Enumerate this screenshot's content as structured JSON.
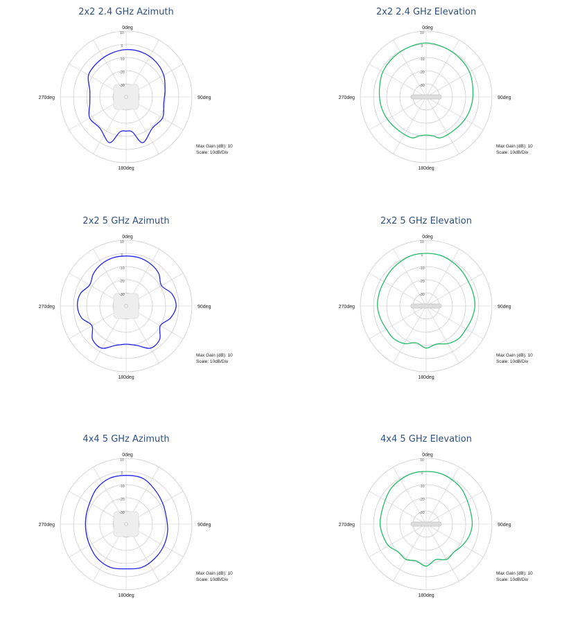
{
  "colors": {
    "azimuth": "#2222ee",
    "elevation": "#22bb66",
    "grid": "#cccccc",
    "title": "#2f4f7f"
  },
  "chart_data": [
    {
      "type": "polar-line",
      "title": "2x2 2.4 GHz Azimuth",
      "plane": "azimuth",
      "direction_labels": [
        "0deg",
        "90deg",
        "180deg",
        "270deg"
      ],
      "radial_ticks": [
        "10",
        "0",
        "-10",
        "-20",
        "-30"
      ],
      "rlim": [
        -40,
        10
      ],
      "max_gain": "Max Gain (dB): 10",
      "scale": "Scale: 10dB/Div",
      "angles": [
        0,
        20,
        40,
        60,
        80,
        100,
        120,
        140,
        160,
        170,
        180,
        190,
        200,
        220,
        240,
        260,
        280,
        300,
        320,
        340
      ],
      "gain_db": [
        -4,
        -4,
        -5,
        -7,
        -10,
        -11,
        -8,
        -9,
        -3,
        -13,
        -14,
        -13,
        -3,
        -9,
        -8,
        -12,
        -12,
        -7,
        -6,
        -5
      ]
    },
    {
      "type": "polar-line",
      "title": "2x2 2.4 GHz Elevation",
      "plane": "elevation",
      "direction_labels": [
        "0deg",
        "90deg",
        "180deg",
        "270deg"
      ],
      "radial_ticks": [
        "10",
        "0",
        "-10",
        "-20",
        "-30"
      ],
      "rlim": [
        -40,
        10
      ],
      "max_gain": "Max Gain (dB): 10",
      "scale": "Scale: 10dB/Div",
      "angles": [
        0,
        20,
        40,
        60,
        80,
        100,
        120,
        140,
        160,
        170,
        180,
        190,
        200,
        220,
        240,
        260,
        280,
        300,
        320,
        340
      ],
      "gain_db": [
        1,
        0,
        -1,
        -2,
        -4,
        -5,
        -6,
        -7,
        -7,
        -10,
        -11,
        -10,
        -7,
        -7,
        -6,
        -5,
        -4,
        -2,
        -1,
        0
      ]
    },
    {
      "type": "polar-line",
      "title": "2x2 5 GHz Azimuth",
      "plane": "azimuth",
      "direction_labels": [
        "0deg",
        "90deg",
        "180deg",
        "270deg"
      ],
      "radial_ticks": [
        "10",
        "0",
        "-10",
        "-20",
        "-30"
      ],
      "rlim": [
        -40,
        10
      ],
      "max_gain": "Max Gain (dB): 10",
      "scale": "Scale: 10dB/Div",
      "angles": [
        0,
        15,
        30,
        45,
        60,
        75,
        90,
        105,
        120,
        135,
        150,
        165,
        180,
        195,
        210,
        225,
        240,
        255,
        270,
        285,
        300,
        315,
        330,
        345
      ],
      "gain_db": [
        -2,
        -2,
        -3,
        -5,
        -9,
        -4,
        -2,
        -5,
        -10,
        -4,
        -3,
        -9,
        -11,
        -9,
        -3,
        -4,
        -10,
        -5,
        -3,
        -4,
        -8,
        -5,
        -3,
        -2
      ]
    },
    {
      "type": "polar-line",
      "title": "2x2 5 GHz Elevation",
      "plane": "elevation",
      "direction_labels": [
        "0deg",
        "90deg",
        "180deg",
        "270deg"
      ],
      "radial_ticks": [
        "10",
        "0",
        "-10",
        "-20",
        "-30"
      ],
      "rlim": [
        -40,
        10
      ],
      "max_gain": "Max Gain (dB): 10",
      "scale": "Scale: 10dB/Div",
      "angles": [
        0,
        15,
        30,
        45,
        60,
        75,
        90,
        105,
        120,
        135,
        150,
        165,
        180,
        195,
        210,
        225,
        240,
        255,
        270,
        285,
        300,
        315,
        330,
        345
      ],
      "gain_db": [
        0,
        0,
        -1,
        -2,
        -3,
        -3,
        -3,
        -4,
        -5,
        -5,
        -7,
        -10,
        -8,
        -11,
        -7,
        -5,
        -5,
        -4,
        -3,
        -3,
        -3,
        -2,
        -1,
        0
      ]
    },
    {
      "type": "polar-line",
      "title": "4x4 5 GHz Azimuth",
      "plane": "azimuth",
      "direction_labels": [
        "0deg",
        "90deg",
        "180deg",
        "270deg"
      ],
      "radial_ticks": [
        "10",
        "0",
        "-10",
        "-20",
        "-30"
      ],
      "rlim": [
        -40,
        10
      ],
      "max_gain": "Max Gain (dB): 10",
      "scale": "Scale: 10dB/Div",
      "angles": [
        0,
        20,
        40,
        60,
        80,
        100,
        120,
        140,
        160,
        180,
        200,
        220,
        240,
        260,
        280,
        300,
        320,
        340
      ],
      "gain_db": [
        -3,
        -3,
        -6,
        -8,
        -9,
        -8,
        -7,
        -6,
        -5,
        -6,
        -5,
        -6,
        -8,
        -9,
        -9,
        -8,
        -5,
        -3
      ]
    },
    {
      "type": "polar-line",
      "title": "4x4 5 GHz Elevation",
      "plane": "elevation",
      "direction_labels": [
        "0deg",
        "90deg",
        "180deg",
        "270deg"
      ],
      "radial_ticks": [
        "10",
        "0",
        "-10",
        "-20",
        "-30"
      ],
      "rlim": [
        -40,
        10
      ],
      "max_gain": "Max Gain (dB): 10",
      "scale": "Scale: 10dB/Div",
      "angles": [
        0,
        15,
        30,
        45,
        60,
        75,
        90,
        105,
        120,
        135,
        150,
        165,
        180,
        195,
        210,
        225,
        240,
        255,
        270,
        285,
        300,
        315,
        330,
        345
      ],
      "gain_db": [
        0,
        0,
        -1,
        -2,
        -4,
        -5,
        -5,
        -6,
        -8,
        -10,
        -9,
        -12,
        -8,
        -11,
        -9,
        -10,
        -7,
        -6,
        -5,
        -5,
        -4,
        -2,
        -1,
        0
      ]
    }
  ]
}
